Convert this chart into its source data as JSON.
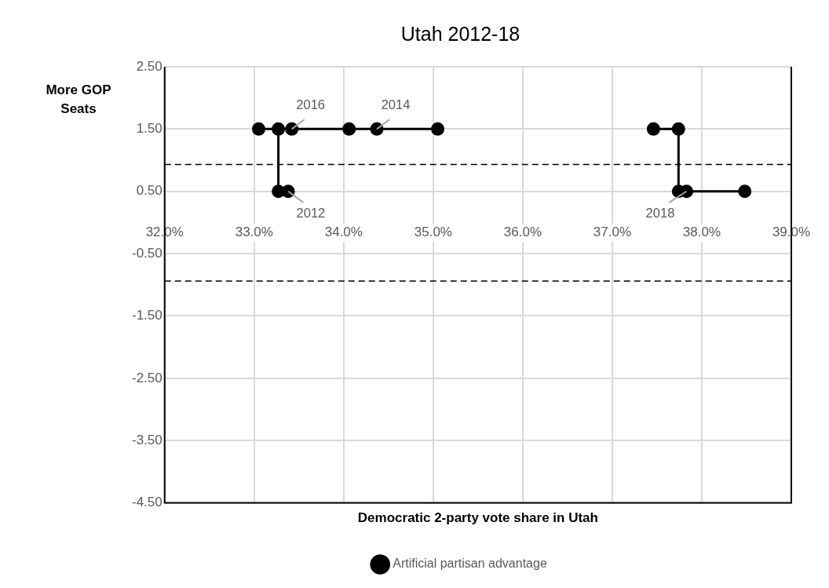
{
  "chart_data": {
    "type": "line",
    "title": "Utah 2012-18",
    "xlabel": "Democratic 2-party vote share in Utah",
    "ylabel": "More GOP Seats",
    "series": [
      {
        "name": "Artificial partisan advantage",
        "color": "#000000",
        "x": [
          33.38,
          33.27,
          33.27,
          33.05,
          33.42,
          34.06,
          34.37,
          35.05,
          null,
          37.46,
          37.74,
          37.74,
          37.83,
          38.48
        ],
        "values": [
          0.5,
          0.5,
          1.5,
          1.5,
          1.5,
          1.5,
          1.5,
          1.5,
          null,
          1.5,
          1.5,
          0.5,
          0.5,
          0.5
        ]
      }
    ],
    "xlim": [
      32,
      39
    ],
    "xticks": [
      {
        "value": 32,
        "label": "32.0%"
      },
      {
        "value": 33,
        "label": "33.0%"
      },
      {
        "value": 34,
        "label": "34.0%"
      },
      {
        "value": 35,
        "label": "35.0%"
      },
      {
        "value": 36,
        "label": "36.0%"
      },
      {
        "value": 37,
        "label": "37.0%"
      },
      {
        "value": 38,
        "label": "38.0%"
      },
      {
        "value": 39,
        "label": "39.0%"
      }
    ],
    "ylim": [
      -4.5,
      2.5
    ],
    "yticks": [
      {
        "value": -4.5,
        "label": "-4.50"
      },
      {
        "value": -3.5,
        "label": "-3.50"
      },
      {
        "value": -2.5,
        "label": "-2.50"
      },
      {
        "value": -1.5,
        "label": "-1.50"
      },
      {
        "value": -0.5,
        "label": "-0.50"
      },
      {
        "value": 0.5,
        "label": "0.50"
      },
      {
        "value": 1.5,
        "label": "1.50"
      },
      {
        "value": 2.5,
        "label": "2.50"
      }
    ],
    "ref_lines": [
      {
        "axis": "y",
        "value": 0.93,
        "color": "#000000",
        "line_style": "dashed"
      },
      {
        "axis": "y",
        "value": -0.94,
        "color": "#000000",
        "line_style": "dashed"
      }
    ],
    "annotations": [
      {
        "text": "2016",
        "x": 33.42,
        "y": 1.5
      },
      {
        "text": "2014",
        "x": 34.37,
        "y": 1.5
      },
      {
        "text": "2012",
        "x": 33.38,
        "y": 0.5
      },
      {
        "text": "2018",
        "x": 37.83,
        "y": 0.5
      }
    ],
    "grid": true,
    "legend": "bottom",
    "marker": "circle",
    "line_style": "solid"
  }
}
